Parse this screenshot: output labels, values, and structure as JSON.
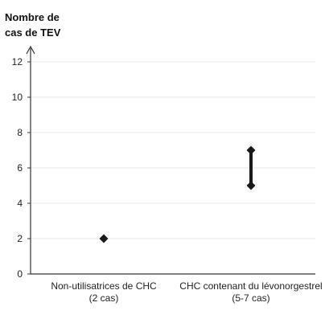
{
  "chart_data": {
    "type": "scatter",
    "title": "",
    "ylabel_lines": [
      "Nombre de",
      "cas de TEV"
    ],
    "xlabel": "",
    "ylim": [
      0,
      12
    ],
    "yticks": [
      0,
      2,
      4,
      6,
      8,
      10,
      12
    ],
    "grid": true,
    "legend": "none",
    "categories": [
      {
        "label_lines": [
          "Non-utilisatrices de CHC",
          "(2 cas)"
        ]
      },
      {
        "label_lines": [
          "CHC contenant du lévonorgestrel",
          "(5-7 cas)"
        ]
      }
    ],
    "series": [
      {
        "points": [
          {
            "category": 0,
            "low": 2,
            "high": 2
          },
          {
            "category": 1,
            "low": 5,
            "high": 7
          }
        ]
      }
    ],
    "colors": {
      "marker": "#1a1a1a",
      "axis": "#333333",
      "grid": "#e6e6e6"
    }
  }
}
